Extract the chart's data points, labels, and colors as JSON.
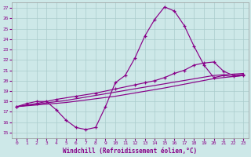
{
  "xlabel": "Windchill (Refroidissement éolien,°C)",
  "xlim": [
    -0.5,
    23.5
  ],
  "ylim": [
    14.5,
    27.5
  ],
  "xticks": [
    0,
    1,
    2,
    3,
    4,
    5,
    6,
    7,
    8,
    9,
    10,
    11,
    12,
    13,
    14,
    15,
    16,
    17,
    18,
    19,
    20,
    21,
    22,
    23
  ],
  "yticks": [
    15,
    16,
    17,
    18,
    19,
    20,
    21,
    22,
    23,
    24,
    25,
    26,
    27
  ],
  "bg_color": "#cde8e8",
  "line_color": "#880088",
  "grid_color": "#aacccc",
  "curve1_x": [
    0,
    1,
    2,
    3,
    4,
    5,
    6,
    7,
    8,
    9,
    10,
    11,
    12,
    13,
    14,
    15,
    16,
    17,
    18,
    19,
    20,
    21,
    22,
    23
  ],
  "curve1_y": [
    17.5,
    17.8,
    18.0,
    18.0,
    17.2,
    16.2,
    15.5,
    15.3,
    15.5,
    17.5,
    19.8,
    20.5,
    22.2,
    24.3,
    25.9,
    27.1,
    26.7,
    25.3,
    23.3,
    21.5,
    20.3,
    20.5,
    20.4,
    20.5
  ],
  "curve2_x": [
    0,
    2,
    4,
    6,
    8,
    10,
    12,
    13,
    14,
    15,
    16,
    17,
    18,
    19,
    20,
    21,
    22,
    23
  ],
  "curve2_y": [
    17.5,
    17.8,
    18.2,
    18.5,
    18.8,
    19.2,
    19.6,
    19.8,
    20.0,
    20.3,
    20.7,
    21.0,
    21.5,
    21.7,
    21.8,
    20.9,
    20.5,
    20.6
  ],
  "curve3_x": [
    0,
    5,
    10,
    15,
    20,
    23
  ],
  "curve3_y": [
    17.5,
    17.9,
    18.5,
    19.3,
    20.2,
    20.5
  ],
  "curve4_x": [
    0,
    5,
    10,
    15,
    20,
    23
  ],
  "curve4_y": [
    17.5,
    18.1,
    18.9,
    19.7,
    20.5,
    20.7
  ]
}
